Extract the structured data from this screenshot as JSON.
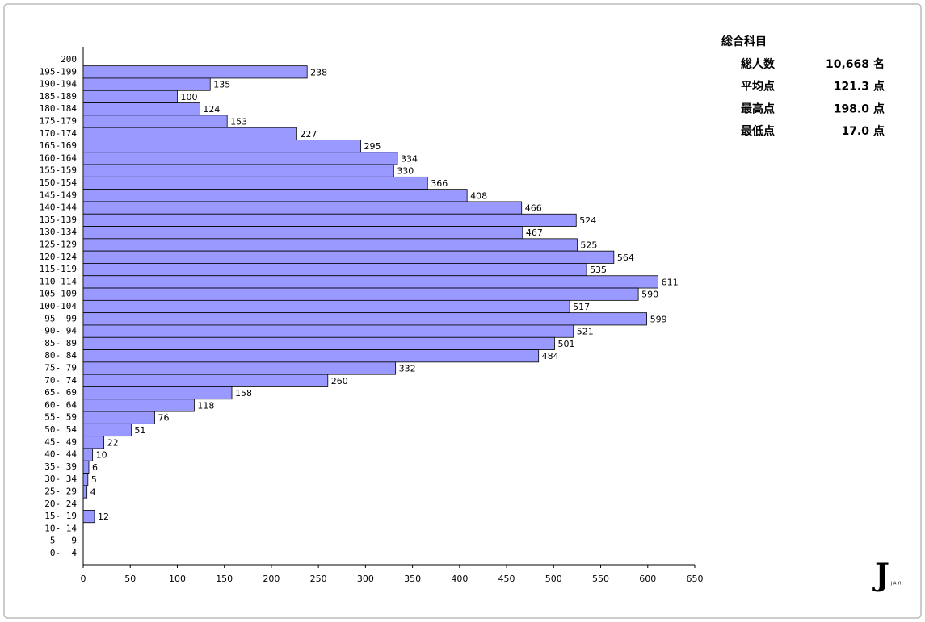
{
  "chart_data": {
    "type": "hbar",
    "categories": [
      "200",
      "195-199",
      "190-194",
      "185-189",
      "180-184",
      "175-179",
      "170-174",
      "165-169",
      "160-164",
      "155-159",
      "150-154",
      "145-149",
      "140-144",
      "135-139",
      "130-134",
      "125-129",
      "120-124",
      "115-119",
      "110-114",
      "105-109",
      "100-104",
      "95- 99",
      "90- 94",
      "85- 89",
      "80- 84",
      "75- 79",
      "70- 74",
      "65- 69",
      "60- 64",
      "55- 59",
      "50- 54",
      "45- 49",
      "40- 44",
      "35- 39",
      "30- 34",
      "25- 29",
      "20- 24",
      "15- 19",
      "10- 14",
      "5-  9",
      "0-  4"
    ],
    "values": [
      null,
      238,
      135,
      100,
      124,
      153,
      227,
      295,
      334,
      330,
      366,
      408,
      466,
      524,
      467,
      525,
      564,
      535,
      611,
      590,
      517,
      599,
      521,
      501,
      484,
      332,
      260,
      158,
      118,
      76,
      51,
      22,
      10,
      6,
      5,
      4,
      null,
      12,
      null,
      null,
      null
    ],
    "color": "#9999ff",
    "xlim": [
      0,
      650
    ],
    "xticks": [
      0,
      50,
      100,
      150,
      200,
      250,
      300,
      350,
      400,
      450,
      500,
      550,
      600,
      650
    ]
  },
  "stats": {
    "title": "総合科目",
    "rows": [
      {
        "label": "総人数",
        "value": "10,668",
        "unit": "名"
      },
      {
        "label": "平均点",
        "value": "121.3",
        "unit": "点"
      },
      {
        "label": "最高点",
        "value": "198.0",
        "unit": "点"
      },
      {
        "label": "最低点",
        "value": "17.0",
        "unit": "点"
      }
    ]
  },
  "logo": {
    "mark": "J",
    "text": "JIA YI"
  }
}
